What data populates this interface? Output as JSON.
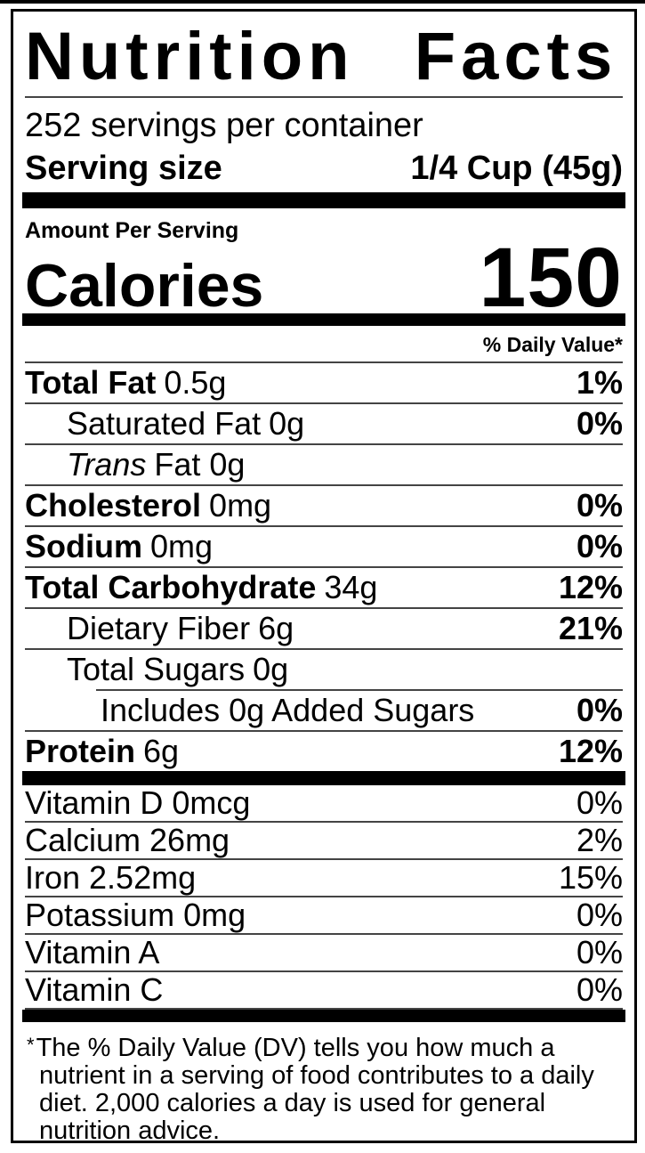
{
  "colors": {
    "ink": "#000000",
    "background": "#ffffff",
    "hairline": "#444444"
  },
  "label": {
    "title": "Nutrition Facts",
    "servings_per_container": "252 servings per container",
    "serving_size_label": "Serving size",
    "serving_size_value": "1/4 Cup (45g)",
    "amount_per_serving": "Amount Per Serving",
    "calories_label": "Calories",
    "calories_value": "150",
    "daily_value_header": "% Daily Value*"
  },
  "nutrients": [
    {
      "name": "Total Fat",
      "amount": "0.5g",
      "dv": "1%"
    },
    {
      "name": "Saturated Fat",
      "amount": "0g",
      "dv": "0%"
    },
    {
      "name_italic": "Trans",
      "rest": "Fat 0g",
      "dv": ""
    },
    {
      "name": "Cholesterol",
      "amount": "0mg",
      "dv": "0%"
    },
    {
      "name": "Sodium",
      "amount": "0mg",
      "dv": "0%"
    },
    {
      "name": "Total Carbohydrate",
      "amount": "34g",
      "dv": "12%"
    },
    {
      "name": "Dietary Fiber",
      "amount": "6g",
      "dv": "21%"
    },
    {
      "name": "Total Sugars",
      "amount": "0g",
      "dv": ""
    },
    {
      "name": "Includes 0g Added Sugars",
      "amount": "",
      "dv": "0%"
    },
    {
      "name": "Protein",
      "amount": "6g",
      "dv": "12%"
    }
  ],
  "vitamins": [
    {
      "text": "Vitamin D 0mcg",
      "dv": "0%"
    },
    {
      "text": "Calcium 26mg",
      "dv": "2%"
    },
    {
      "text": "Iron 2.52mg",
      "dv": "15%"
    },
    {
      "text": "Potassium 0mg",
      "dv": "0%"
    },
    {
      "text": "Vitamin A",
      "dv": "0%"
    },
    {
      "text": "Vitamin C",
      "dv": "0%"
    }
  ],
  "footnote": {
    "marker": "*",
    "text": "The % Daily Value (DV) tells you how much a nutrient in a serving of food contributes to a daily diet. 2,000 calories a day is used for general nutrition advice."
  }
}
